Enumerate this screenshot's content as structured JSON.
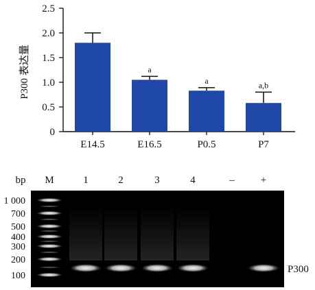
{
  "chart_data": [
    {
      "type": "bar",
      "categories": [
        "E14.5",
        "E16.5",
        "P0.5",
        "P7"
      ],
      "values": [
        1.8,
        1.05,
        0.83,
        0.58
      ],
      "errors": [
        0.2,
        0.07,
        0.06,
        0.22
      ],
      "significance": [
        "",
        "a",
        "a",
        "a,b"
      ],
      "ylabel": "P300 表达量",
      "ylim": [
        0,
        2.5
      ],
      "yticks": [
        "0",
        "0.5",
        "1.0",
        "1.5",
        "2.0",
        "2.5"
      ],
      "bar_color": "#1f47a8",
      "grid": false
    },
    {
      "type": "gel",
      "unit_label": "bp",
      "lane_labels": [
        "M",
        "1",
        "2",
        "3",
        "4",
        "–",
        "+"
      ],
      "ladder_labels": [
        "1 000",
        "700",
        "500",
        "400",
        "300",
        "200",
        "100"
      ],
      "band_label": "P300",
      "lanes_with_band": [
        "1",
        "2",
        "3",
        "4",
        "+"
      ],
      "background_color": "#000000"
    }
  ]
}
